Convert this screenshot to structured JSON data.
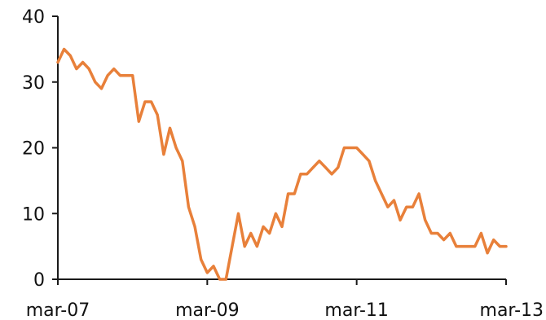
{
  "chart_data": {
    "type": "line",
    "title": "",
    "xlabel": "",
    "ylabel": "",
    "ylim": [
      0,
      40
    ],
    "yticks": [
      "0",
      "10",
      "20",
      "30",
      "40"
    ],
    "xlim": [
      0,
      72
    ],
    "xticks": [
      {
        "label": "mar-07",
        "x": 0
      },
      {
        "label": "mar-09",
        "x": 24
      },
      {
        "label": "mar-11",
        "x": 48
      },
      {
        "label": "mar-13",
        "x": 72
      }
    ],
    "grid": false,
    "legend": "none",
    "colors": {
      "line": "#e8803a",
      "axis": "#1a1a1a",
      "text": "#111111"
    },
    "series": [
      {
        "x": [
          0,
          1,
          2,
          3,
          4,
          5,
          6,
          7,
          8,
          9,
          10,
          11,
          12,
          13,
          14,
          15,
          16,
          17,
          18,
          19,
          20,
          21,
          22,
          23,
          24,
          25,
          26,
          27,
          28,
          29,
          30,
          31,
          32,
          33,
          34,
          35,
          36,
          37,
          38,
          39,
          40,
          41,
          42,
          43,
          44,
          45,
          46,
          47,
          48,
          49,
          50,
          51,
          52,
          53,
          54,
          55,
          56,
          57,
          58,
          59,
          60,
          61,
          62,
          63,
          64,
          65,
          66,
          67,
          68,
          69,
          70,
          71,
          72
        ],
        "values": [
          33,
          35,
          34,
          32,
          33,
          32,
          30,
          29,
          31,
          32,
          31,
          31,
          31,
          24,
          27,
          27,
          25,
          19,
          23,
          20,
          18,
          11,
          8,
          3,
          1,
          2,
          0,
          0,
          5,
          10,
          5,
          7,
          5,
          8,
          7,
          10,
          8,
          13,
          13,
          16,
          16,
          17,
          18,
          17,
          16,
          17,
          20,
          20,
          20,
          19,
          18,
          15,
          13,
          11,
          12,
          9,
          11,
          11,
          13,
          9,
          7,
          7,
          6,
          7,
          5,
          5,
          5,
          5,
          7,
          4,
          6,
          5,
          5
        ]
      }
    ]
  }
}
